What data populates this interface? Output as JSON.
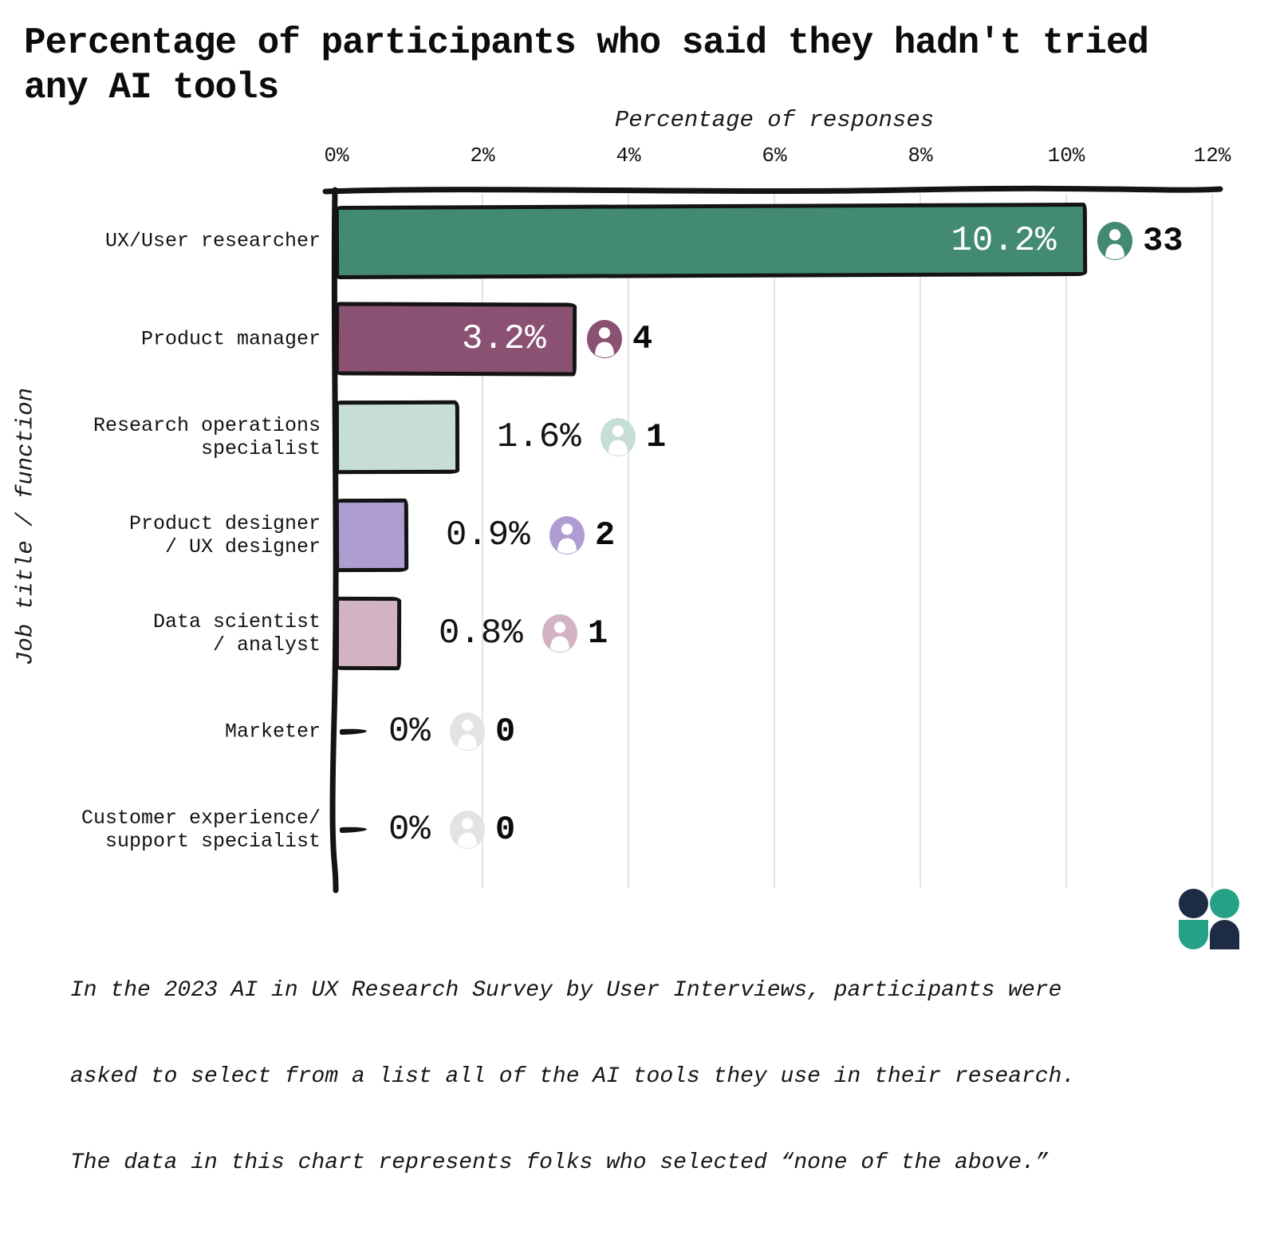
{
  "title": "Percentage of participants who said they hadn't tried any AI tools",
  "title_lines": [
    "Percentage of participants who said they hadn't tried",
    "any AI tools"
  ],
  "axis": {
    "x_title": "Percentage of responses",
    "y_title": "Job title / function",
    "tick_labels": [
      "0%",
      "2%",
      "4%",
      "6%",
      "8%",
      "10%",
      "12%"
    ]
  },
  "chart_data": {
    "type": "bar",
    "orientation": "horizontal",
    "title": "Percentage of participants who said they hadn't tried any AI tools",
    "xlabel": "Percentage of responses",
    "ylabel": "Job title / function",
    "xlim": [
      0,
      12
    ],
    "xticks_pct": [
      0,
      2,
      4,
      6,
      8,
      10,
      12
    ],
    "grid": true,
    "legend": "none",
    "rows": [
      {
        "category": "UX/User researcher",
        "category_lines": [
          "UX/User researcher"
        ],
        "value_pct": 10.2,
        "value_label": "10.2%",
        "respondent_count": 33,
        "count_label": "33",
        "color": "#428b72",
        "value_label_inside": true
      },
      {
        "category": "Product manager",
        "category_lines": [
          "Product manager"
        ],
        "value_pct": 3.2,
        "value_label": "3.2%",
        "respondent_count": 4,
        "count_label": "4",
        "color": "#8a5173",
        "value_label_inside": true
      },
      {
        "category": "Research operations specialist",
        "category_lines": [
          "Research operations",
          "specialist"
        ],
        "value_pct": 1.6,
        "value_label": "1.6%",
        "respondent_count": 1,
        "count_label": "1",
        "color": "#c7ded6",
        "value_label_inside": false
      },
      {
        "category": "Product designer / UX designer",
        "category_lines": [
          "Product designer",
          "/ UX designer"
        ],
        "value_pct": 0.9,
        "value_label": "0.9%",
        "respondent_count": 2,
        "count_label": "2",
        "color": "#ae9dd1",
        "value_label_inside": false
      },
      {
        "category": "Data scientist / analyst",
        "category_lines": [
          "Data scientist",
          "/ analyst"
        ],
        "value_pct": 0.8,
        "value_label": "0.8%",
        "respondent_count": 1,
        "count_label": "1",
        "color": "#d2b3c2",
        "value_label_inside": false
      },
      {
        "category": "Marketer",
        "category_lines": [
          "Marketer"
        ],
        "value_pct": 0,
        "value_label": "0%",
        "respondent_count": 0,
        "count_label": "0",
        "color": "#e3e3e3",
        "value_label_inside": false
      },
      {
        "category": "Customer experience/ support specialist",
        "category_lines": [
          "Customer experience/",
          "support specialist"
        ],
        "value_pct": 0,
        "value_label": "0%",
        "respondent_count": 0,
        "count_label": "0",
        "color": "#e3e3e3",
        "value_label_inside": false
      }
    ]
  },
  "footnote": "In the 2023 AI in UX Research Survey by User Interviews, participants were asked to select from a list all of the AI tools they use in their research. The data in this chart represents folks who selected “none of the above.”",
  "footnote_lines": [
    "In the 2023 AI in UX Research Survey by User Interviews, participants were",
    "asked to select from a list all of the AI tools they use in their research.",
    "The data in this chart represents folks who selected “none of the above.”"
  ],
  "logo": {
    "name": "user-interviews-logo",
    "navy": "#1d2b45",
    "green": "#25a185"
  },
  "colors": {
    "background": "#ffffff",
    "text": "#111111",
    "bar_border": "#141414",
    "gridline": "#e3e3e3",
    "inside_value_label": "#ffffff"
  }
}
